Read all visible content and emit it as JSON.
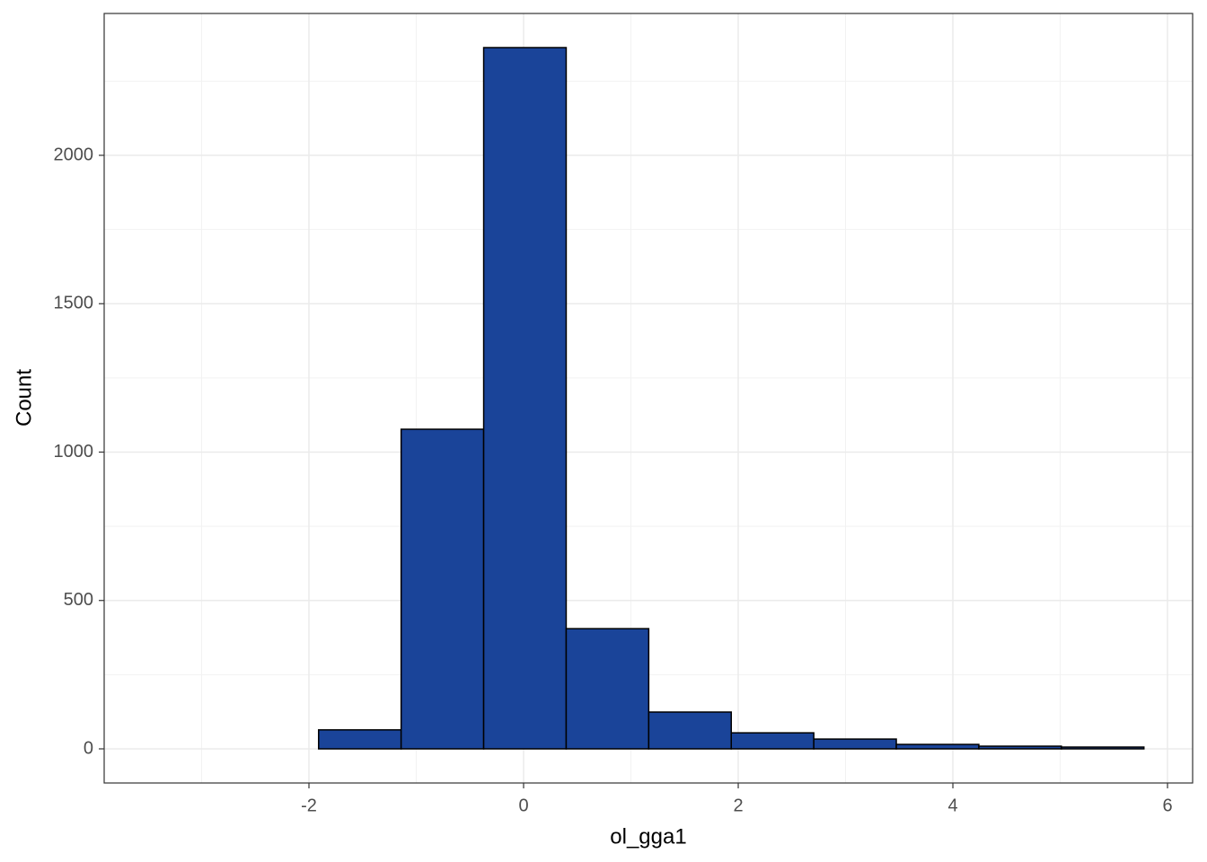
{
  "chart_data": {
    "type": "histogram",
    "x_label": "ol_gga1",
    "y_label": "Count",
    "bins": [
      -3.448,
      -2.679,
      -1.91,
      -1.141,
      -0.372,
      0.397,
      1.166,
      1.935,
      2.704,
      3.473,
      4.242,
      5.011,
      5.78
    ],
    "counts": [
      0,
      0,
      64,
      1077,
      2363,
      405,
      124,
      54,
      33,
      15,
      9,
      6
    ],
    "color": "#1a4499",
    "edge_color": "#000000",
    "xlim": [
      -3.908,
      6.234
    ],
    "ylim": [
      -115,
      2478
    ],
    "xticks": [
      -2,
      0,
      2,
      4,
      6
    ],
    "yticks": [
      0,
      500,
      1000,
      1500,
      2000
    ],
    "xminor": [
      -3,
      -1,
      1,
      3,
      5
    ],
    "yminor": [
      250,
      750,
      1250,
      1750,
      2250
    ],
    "grid": true
  }
}
